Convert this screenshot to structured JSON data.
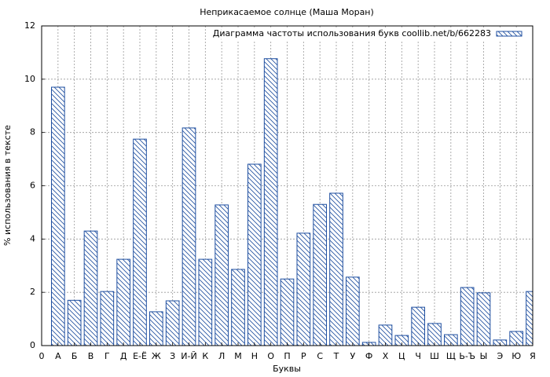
{
  "chart_data": {
    "type": "bar",
    "title": "Неприкасаемое солнце (Маша Моран)",
    "x_label": "Буквы",
    "y_label": "% использования в тексте",
    "categories": [
      "0",
      "А",
      "Б",
      "В",
      "Г",
      "Д",
      "Е-Ё",
      "Ж",
      "З",
      "И-Й",
      "К",
      "Л",
      "М",
      "Н",
      "О",
      "П",
      "Р",
      "С",
      "Т",
      "У",
      "Ф",
      "Х",
      "Ц",
      "Ч",
      "Ш",
      "Щ",
      "Ь-Ъ",
      "Ы",
      "Э",
      "Ю",
      "Я"
    ],
    "series": [
      {
        "name": "Диаграмма частоты использования букв coollib.net/b/662283",
        "color": "#1f4fa0",
        "values": [
          null,
          9.7,
          1.7,
          4.3,
          2.03,
          3.24,
          7.75,
          1.27,
          1.68,
          8.17,
          3.24,
          5.28,
          2.86,
          6.81,
          10.77,
          2.5,
          4.22,
          5.3,
          5.72,
          2.57,
          0.12,
          0.77,
          0.38,
          1.44,
          0.83,
          0.41,
          2.18,
          1.98,
          0.21,
          0.53,
          2.03
        ]
      }
    ],
    "ylim": [
      0,
      12
    ],
    "yticks": [
      0,
      2,
      4,
      6,
      8,
      10,
      12
    ],
    "grid": true,
    "legend": "upper right"
  }
}
